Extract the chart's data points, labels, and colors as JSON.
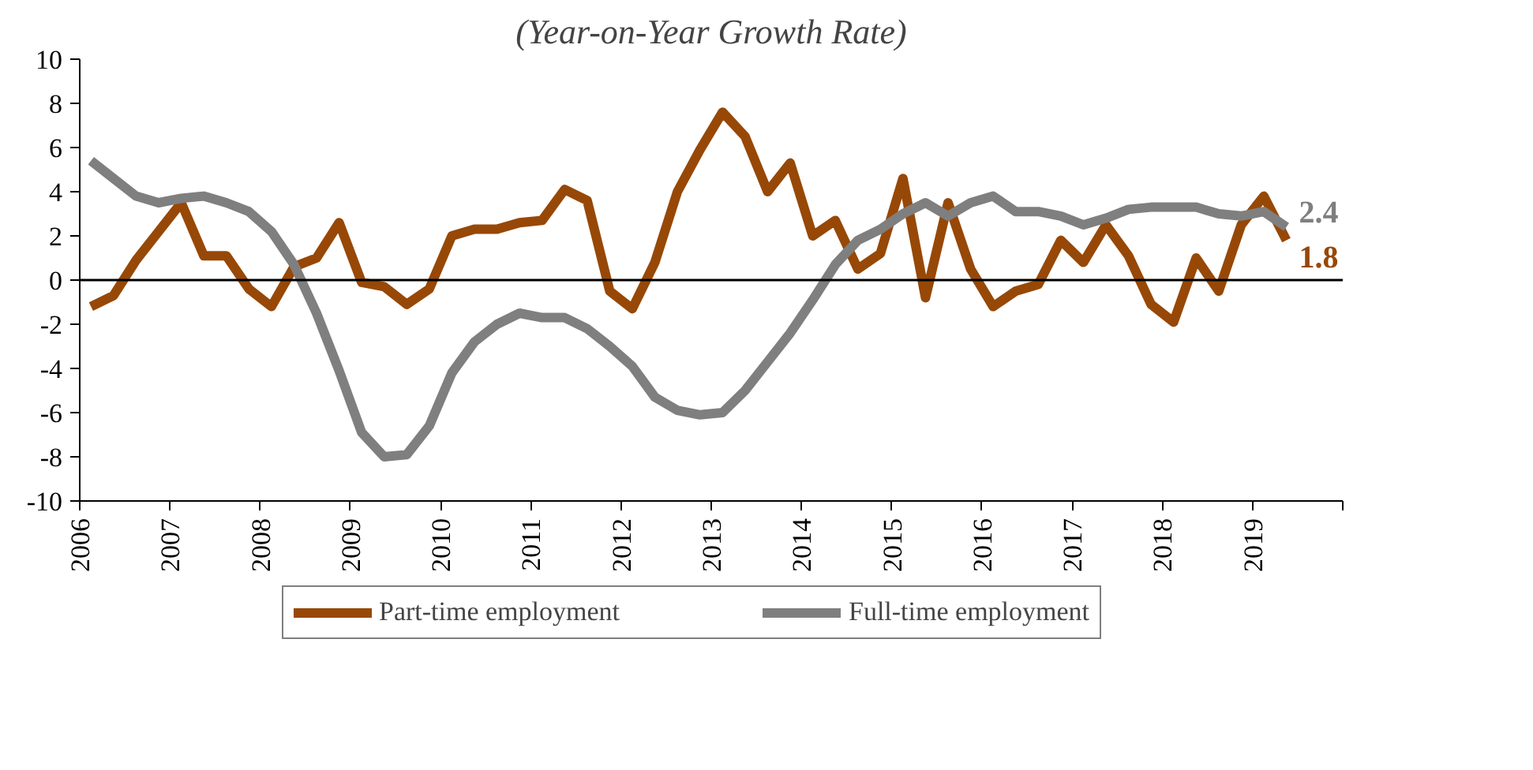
{
  "chart_data": {
    "type": "line",
    "title": "(Year-on-Year Growth Rate)",
    "x": [
      2006.125,
      2006.375,
      2006.625,
      2006.875,
      2007.125,
      2007.375,
      2007.625,
      2007.875,
      2008.125,
      2008.375,
      2008.625,
      2008.875,
      2009.125,
      2009.375,
      2009.625,
      2009.875,
      2010.125,
      2010.375,
      2010.625,
      2010.875,
      2011.125,
      2011.375,
      2011.625,
      2011.875,
      2012.125,
      2012.375,
      2012.625,
      2012.875,
      2013.125,
      2013.375,
      2013.625,
      2013.875,
      2014.125,
      2014.375,
      2014.625,
      2014.875,
      2015.125,
      2015.375,
      2015.625,
      2015.875,
      2016.125,
      2016.375,
      2016.625,
      2016.875,
      2017.125,
      2017.375,
      2017.625,
      2017.875,
      2018.125,
      2018.375,
      2018.625,
      2018.875,
      2019.125,
      2019.375
    ],
    "series": [
      {
        "name": "Part-time employment",
        "color": "#974806",
        "values": [
          -1.2,
          -0.7,
          0.9,
          2.2,
          3.5,
          1.1,
          1.1,
          -0.4,
          -1.2,
          0.6,
          1.0,
          2.6,
          -0.1,
          -0.3,
          -1.1,
          -0.4,
          2.0,
          2.3,
          2.3,
          2.6,
          2.7,
          4.1,
          3.6,
          -0.5,
          -1.3,
          0.8,
          4.0,
          5.9,
          7.6,
          6.5,
          4.0,
          5.3,
          2.0,
          2.7,
          0.5,
          1.2,
          4.6,
          -0.8,
          3.5,
          0.5,
          -1.2,
          -0.5,
          -0.2,
          1.8,
          0.8,
          2.5,
          1.1,
          -1.1,
          -1.9,
          1.0,
          -0.5,
          2.5,
          3.8,
          1.8
        ],
        "value_labels": [
          null,
          null,
          null,
          null,
          null,
          null,
          null,
          null,
          null,
          null,
          null,
          null,
          null,
          null,
          null,
          null,
          null,
          null,
          null,
          null,
          null,
          null,
          null,
          null,
          null,
          null,
          null,
          null,
          null,
          null,
          null,
          null,
          null,
          null,
          null,
          null,
          null,
          null,
          null,
          null,
          null,
          null,
          null,
          null,
          null,
          null,
          null,
          null,
          null,
          null,
          null,
          null,
          null,
          "1.8"
        ]
      },
      {
        "name": "Full-time employment",
        "color": "#7f7f7f",
        "values": [
          5.4,
          4.6,
          3.8,
          3.5,
          3.7,
          3.8,
          3.5,
          3.1,
          2.2,
          0.7,
          -1.5,
          -4.1,
          -6.9,
          -8.0,
          -7.9,
          -6.6,
          -4.2,
          -2.8,
          -2.0,
          -1.5,
          -1.7,
          -1.7,
          -2.2,
          -3.0,
          -3.9,
          -5.3,
          -5.9,
          -6.1,
          -6.0,
          -5.0,
          -3.7,
          -2.4,
          -0.9,
          0.7,
          1.8,
          2.3,
          3.0,
          3.5,
          2.9,
          3.5,
          3.8,
          3.1,
          3.1,
          2.9,
          2.5,
          2.8,
          3.2,
          3.3,
          3.3,
          3.3,
          3.0,
          2.9,
          3.1,
          2.4
        ],
        "value_labels": [
          null,
          null,
          null,
          null,
          null,
          null,
          null,
          null,
          null,
          null,
          null,
          null,
          null,
          null,
          null,
          null,
          null,
          null,
          null,
          null,
          null,
          null,
          null,
          null,
          null,
          null,
          null,
          null,
          null,
          null,
          null,
          null,
          null,
          null,
          null,
          null,
          null,
          null,
          null,
          null,
          null,
          null,
          null,
          null,
          null,
          null,
          null,
          null,
          null,
          null,
          null,
          null,
          null,
          "2.4"
        ]
      }
    ],
    "xlim": [
      2006,
      2020
    ],
    "xticks": [
      2006,
      2007,
      2008,
      2009,
      2010,
      2011,
      2012,
      2013,
      2014,
      2015,
      2016,
      2017,
      2018,
      2019,
      {
        "value": 2020,
        "label": null
      }
    ],
    "ylim": [
      -10,
      10
    ],
    "yticks": [
      -10,
      -8,
      -6,
      -4,
      -2,
      0,
      2,
      4,
      6,
      8,
      10
    ],
    "ref_lines": [
      {
        "axis": "y",
        "value": 0,
        "color": "#000000"
      }
    ],
    "grid": false,
    "legend": "bottom",
    "marker": "none",
    "line_style": "solid"
  }
}
